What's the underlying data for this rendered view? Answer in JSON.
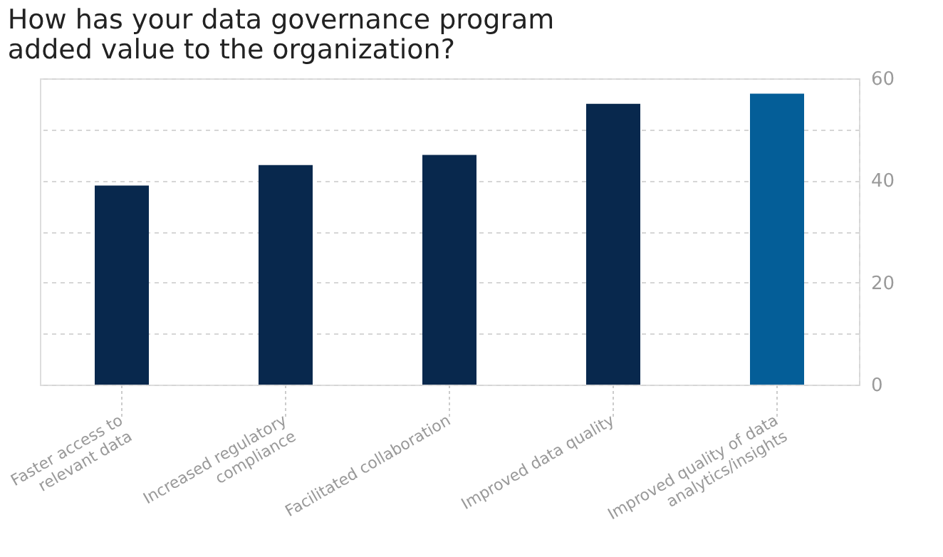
{
  "chart_data": {
    "type": "bar",
    "title": [
      "How has your data governance program",
      "added value to the organization?"
    ],
    "categories": [
      "Faster access to\nrelevant data",
      "Increased regulatory\ncompliance",
      "Facilitated collaboration",
      "Improved data quality",
      "Improved quality of data\nanalytics/insights"
    ],
    "values": [
      39,
      43,
      45,
      55,
      57
    ],
    "colors": [
      "#08284d",
      "#08284d",
      "#08284d",
      "#08284d",
      "#045e98"
    ],
    "ylim": [
      0,
      60
    ],
    "yticks": [
      0,
      {
        "value": 10,
        "label": null
      },
      20,
      {
        "value": 30,
        "label": null
      },
      40,
      {
        "value": 50,
        "label": null
      },
      60
    ],
    "grid": true
  }
}
